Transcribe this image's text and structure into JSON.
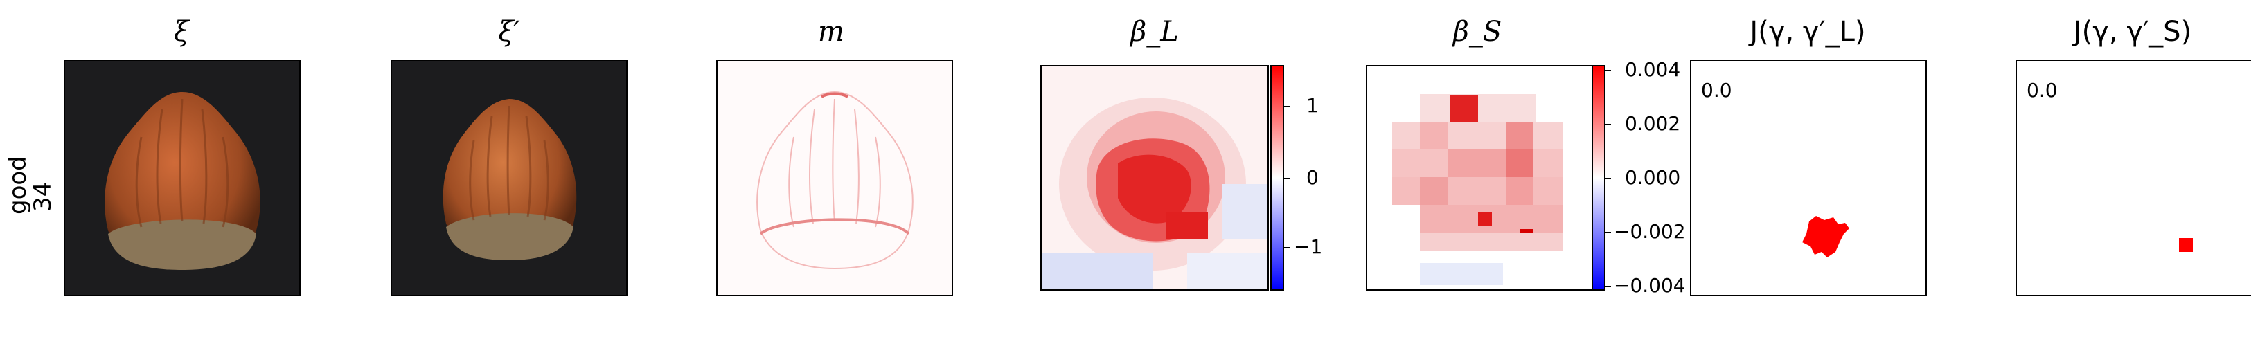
{
  "row_label": {
    "line1": "good",
    "line2": "34"
  },
  "titles": {
    "xi": "ξ",
    "xi_prime": "ξ′",
    "m": "m",
    "beta_L": "β_L",
    "beta_S": "β_S",
    "J_L": "J(γ, γ′_L)",
    "J_S": "J(γ, γ′_S)"
  },
  "colorbars": {
    "beta_L": {
      "ticks": [
        "1",
        "0",
        "−1"
      ]
    },
    "beta_S": {
      "ticks": [
        "0.004",
        "0.002",
        "0.000",
        "−0.002",
        "−0.004"
      ]
    }
  },
  "J_panels": {
    "value_L": "0.0",
    "value_S": "0.0"
  },
  "colors": {
    "red": "#ff0000",
    "blue": "#0000ff",
    "dark_bg": "#1c1c1e",
    "hazel": "#a2532a"
  }
}
